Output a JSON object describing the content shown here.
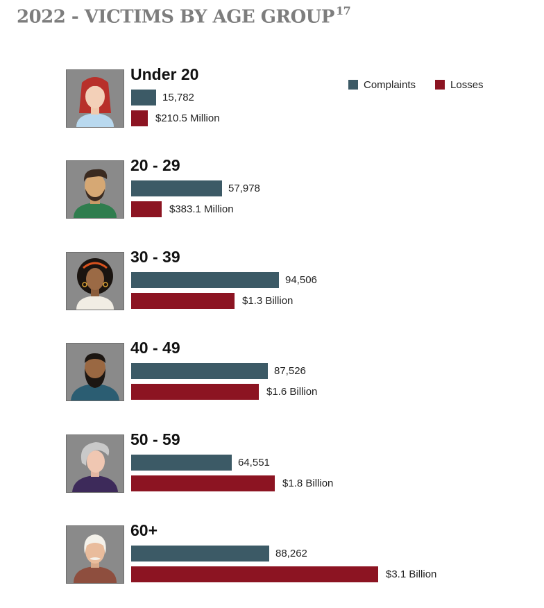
{
  "title": "2022 - VICTIMS BY AGE GROUP",
  "title_superscript": "17",
  "colors": {
    "complaints": "#3c5a66",
    "losses": "#8c1422",
    "avatar_bg": "#8a8a8a"
  },
  "legend": {
    "complaints": "Complaints",
    "losses": "Losses"
  },
  "groups": [
    {
      "label": "Under 20",
      "complaints_label": "15,782",
      "losses_label": "$210.5 Million",
      "avatar_icon": "young-woman-avatar-icon"
    },
    {
      "label": "20 - 29",
      "complaints_label": "57,978",
      "losses_label": "$383.1 Million",
      "avatar_icon": "young-man-avatar-icon"
    },
    {
      "label": "30 - 39",
      "complaints_label": "94,506",
      "losses_label": "$1.3 Billion",
      "avatar_icon": "curly-hair-woman-avatar-icon"
    },
    {
      "label": "40 - 49",
      "complaints_label": "87,526",
      "losses_label": "$1.6 Billion",
      "avatar_icon": "bearded-man-avatar-icon"
    },
    {
      "label": "50 - 59",
      "complaints_label": "64,551",
      "losses_label": "$1.8 Billion",
      "avatar_icon": "gray-hair-woman-avatar-icon"
    },
    {
      "label": "60+",
      "complaints_label": "88,262",
      "losses_label": "$3.1 Billion",
      "avatar_icon": "elderly-man-avatar-icon"
    }
  ],
  "chart_data": {
    "type": "bar",
    "title": "2022 - VICTIMS BY AGE GROUP",
    "categories": [
      "Under 20",
      "20 - 29",
      "30 - 39",
      "40 - 49",
      "50 - 59",
      "60+"
    ],
    "series": [
      {
        "name": "Complaints",
        "values": [
          15782,
          57978,
          94506,
          87526,
          64551,
          88262
        ]
      },
      {
        "name": "Losses",
        "unit": "USD",
        "values": [
          210500000,
          383100000,
          1300000000,
          1600000000,
          1800000000,
          3100000000
        ]
      }
    ],
    "orientation": "horizontal",
    "legend_position": "top-right",
    "grid": false
  }
}
